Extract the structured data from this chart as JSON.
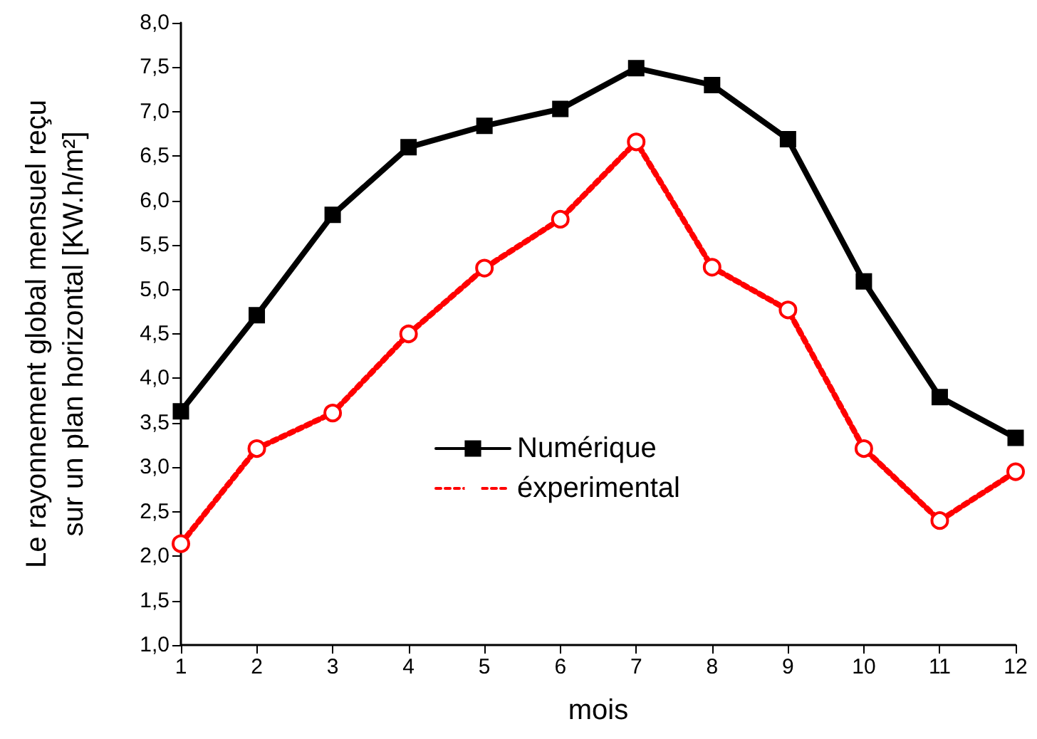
{
  "chart_data": {
    "type": "line",
    "xlabel": "mois",
    "ylabel": "Le rayonnement global mensuel reçu\nsur un plan horizontal [KW.h/m²]",
    "x": [
      1,
      2,
      3,
      4,
      5,
      6,
      7,
      8,
      9,
      10,
      11,
      12
    ],
    "series": [
      {
        "name": "Numérique",
        "color": "#000000",
        "marker": "square",
        "line_style": "solid",
        "values": [
          3.63,
          4.71,
          5.84,
          6.6,
          6.84,
          7.03,
          7.49,
          7.3,
          6.69,
          5.09,
          3.79,
          3.33
        ]
      },
      {
        "name": "éxperimental",
        "color": "#ff0000",
        "marker": "circle",
        "line_style": "dashed",
        "values": [
          2.14,
          3.21,
          3.61,
          4.5,
          5.24,
          5.79,
          6.66,
          5.25,
          4.77,
          3.21,
          2.4,
          2.95
        ]
      }
    ],
    "xlim": [
      1,
      12
    ],
    "xticks": [
      1,
      2,
      3,
      4,
      5,
      6,
      7,
      8,
      9,
      10,
      11,
      12
    ],
    "ylim": [
      1,
      8
    ],
    "yticks": [
      {
        "value": 1,
        "label": "1,0"
      },
      {
        "value": 1.5,
        "label": "1,5"
      },
      {
        "value": 2,
        "label": "2,0"
      },
      {
        "value": 2.5,
        "label": "2,5"
      },
      {
        "value": 3,
        "label": "3,0"
      },
      {
        "value": 3.5,
        "label": "3,5"
      },
      {
        "value": 4,
        "label": "4,0"
      },
      {
        "value": 4.5,
        "label": "4,5"
      },
      {
        "value": 5,
        "label": "5,0"
      },
      {
        "value": 5.5,
        "label": "5,5"
      },
      {
        "value": 6,
        "label": "6,0"
      },
      {
        "value": 6.5,
        "label": "6,5"
      },
      {
        "value": 7,
        "label": "7,0"
      },
      {
        "value": 7.5,
        "label": "7,5"
      },
      {
        "value": 8,
        "label": "8,0"
      }
    ],
    "grid": false,
    "legend": "center"
  }
}
